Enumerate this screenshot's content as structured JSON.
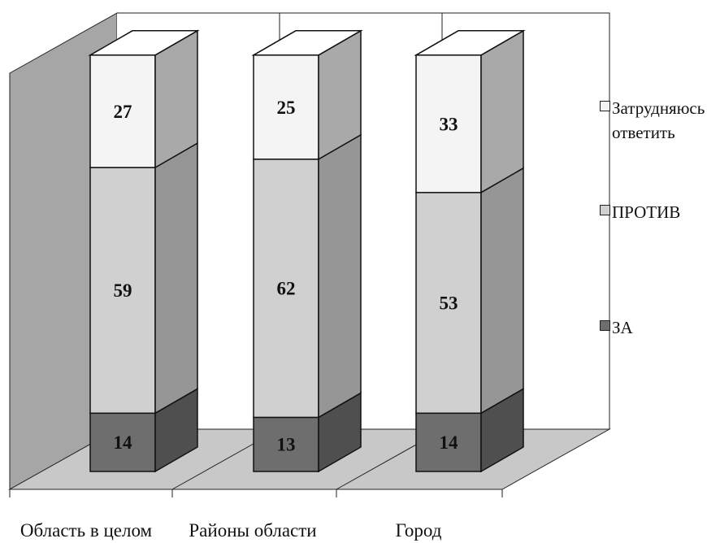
{
  "chart_data": {
    "type": "bar",
    "stacked": true,
    "three_d": true,
    "categories": [
      "Область в целом",
      "Районы области",
      "Город"
    ],
    "series": [
      {
        "name": "ЗА",
        "values": [
          14,
          13,
          14
        ],
        "color": "#6e6e6e"
      },
      {
        "name": "ПРОТИВ",
        "values": [
          59,
          62,
          53
        ],
        "color": "#d0d0d0"
      },
      {
        "name": "Затрудняюсь\nответить",
        "values": [
          27,
          25,
          33
        ],
        "color": "#f4f4f4"
      }
    ],
    "legend": [
      "Затрудняюсь\nответить",
      "ПРОТИВ",
      "ЗА"
    ],
    "legend_position": "right",
    "ylim": [
      0,
      100
    ],
    "grid": true,
    "data_labels": true,
    "walls": {
      "back": "#ffffff",
      "side": "#a6a6a6",
      "floor": "#c8c8c8"
    }
  }
}
